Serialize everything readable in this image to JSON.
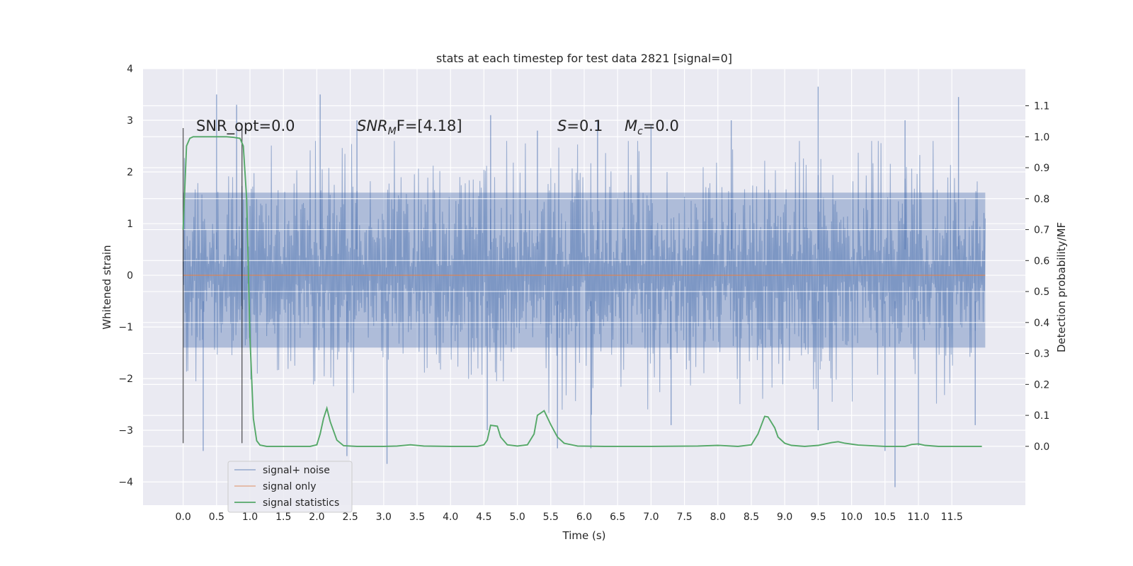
{
  "chart_data": {
    "type": "line",
    "title": "stats at each timestep for test data 2821 [signal=0]",
    "xlabel": "Time (s)",
    "ylabel_left": "Whitened strain",
    "ylabel_right": "Detection probability/MF",
    "xlim": [
      -0.6,
      12.6
    ],
    "ylim_left": [
      -4.45,
      4.0
    ],
    "ylim_right": [
      -0.19,
      1.22
    ],
    "x_ticks": [
      "0.0",
      "0.5",
      "1.0",
      "1.5",
      "2.0",
      "2.5",
      "3.0",
      "3.5",
      "4.0",
      "4.5",
      "5.0",
      "5.5",
      "6.0",
      "6.5",
      "7.0",
      "7.5",
      "8.0",
      "8.5",
      "9.0",
      "9.5",
      "10.0",
      "10.5",
      "11.0",
      "11.5"
    ],
    "y_ticks_left": [
      "4",
      "3",
      "2",
      "1",
      "0",
      "−1",
      "−2",
      "−3",
      "−4"
    ],
    "y_ticks_right": [
      "1.1",
      "1.0",
      "0.9",
      "0.8",
      "0.7",
      "0.6",
      "0.5",
      "0.4",
      "0.3",
      "0.2",
      "0.1",
      "0.0"
    ],
    "grid": true,
    "legend_position": "lower-left",
    "annotations": {
      "snr_opt": "SNR_opt=0.0",
      "snr_mf_sym": "SNR",
      "snr_mf_sub": "M",
      "snr_mf_rest": "F=[4.18]",
      "s_sym": "S",
      "s_rest": "=0.1",
      "mc_sym": "M",
      "mc_sub": "c",
      "mc_rest": "=0.0"
    },
    "vlines_x": [
      0.0,
      0.88
    ],
    "series": [
      {
        "name": "signal+ noise",
        "color": "#4c72b0",
        "x_range": [
          0.0,
          12.0
        ],
        "envelope_typical": [
          -1.4,
          1.6
        ],
        "peak_max": [
          [
            0.5,
            3.5
          ],
          [
            0.8,
            3.3
          ],
          [
            2.05,
            3.5
          ],
          [
            2.6,
            3.0
          ],
          [
            4.6,
            3.1
          ],
          [
            5.3,
            2.8
          ],
          [
            6.2,
            3.0
          ],
          [
            7.0,
            2.9
          ],
          [
            8.2,
            3.0
          ],
          [
            9.5,
            3.65
          ],
          [
            10.8,
            3.0
          ],
          [
            11.6,
            3.45
          ]
        ],
        "peak_min": [
          [
            0.3,
            -3.4
          ],
          [
            2.45,
            -3.5
          ],
          [
            3.05,
            -3.65
          ],
          [
            4.55,
            -3.0
          ],
          [
            5.6,
            -3.35
          ],
          [
            6.1,
            -3.35
          ],
          [
            7.3,
            -2.9
          ],
          [
            9.5,
            -3.0
          ],
          [
            10.5,
            -3.4
          ],
          [
            10.65,
            -4.1
          ],
          [
            11.0,
            -3.3
          ],
          [
            11.85,
            -2.9
          ]
        ]
      },
      {
        "name": "signal only",
        "color": "#dd8452",
        "x": [
          0.0,
          12.0
        ],
        "y": [
          0.0,
          0.0
        ]
      },
      {
        "name": "signal statistics",
        "color": "#55a868",
        "x": [
          0.0,
          0.05,
          0.1,
          0.15,
          0.25,
          0.35,
          0.5,
          0.65,
          0.75,
          0.85,
          0.9,
          0.95,
          1.0,
          1.05,
          1.1,
          1.15,
          1.25,
          1.5,
          1.9,
          2.0,
          2.05,
          2.1,
          2.15,
          2.2,
          2.3,
          2.4,
          2.6,
          3.0,
          3.2,
          3.4,
          3.6,
          4.0,
          4.4,
          4.5,
          4.55,
          4.6,
          4.7,
          4.75,
          4.85,
          5.0,
          5.15,
          5.25,
          5.3,
          5.4,
          5.5,
          5.6,
          5.7,
          5.9,
          6.3,
          7.0,
          7.7,
          8.0,
          8.3,
          8.5,
          8.6,
          8.7,
          8.75,
          8.85,
          8.9,
          9.0,
          9.1,
          9.3,
          9.5,
          9.7,
          9.8,
          9.9,
          10.1,
          10.5,
          10.8,
          10.9,
          11.0,
          11.1,
          11.3,
          11.6,
          11.95
        ],
        "y": [
          0.7,
          0.97,
          0.995,
          1.0,
          1.0,
          1.0,
          1.0,
          1.0,
          0.998,
          0.995,
          0.97,
          0.8,
          0.35,
          0.09,
          0.018,
          0.004,
          0.0,
          0.0,
          0.0,
          0.005,
          0.04,
          0.09,
          0.123,
          0.08,
          0.02,
          0.002,
          0.0,
          0.0,
          0.001,
          0.005,
          0.001,
          0.0,
          0.0,
          0.005,
          0.02,
          0.068,
          0.065,
          0.03,
          0.005,
          0.001,
          0.005,
          0.04,
          0.1,
          0.115,
          0.07,
          0.03,
          0.01,
          0.001,
          0.0,
          0.0,
          0.001,
          0.003,
          0.0,
          0.005,
          0.04,
          0.097,
          0.095,
          0.06,
          0.03,
          0.01,
          0.003,
          0.0,
          0.003,
          0.012,
          0.015,
          0.01,
          0.004,
          0.0,
          0.0,
          0.006,
          0.008,
          0.003,
          0.0,
          0.0,
          0.0
        ]
      }
    ]
  }
}
